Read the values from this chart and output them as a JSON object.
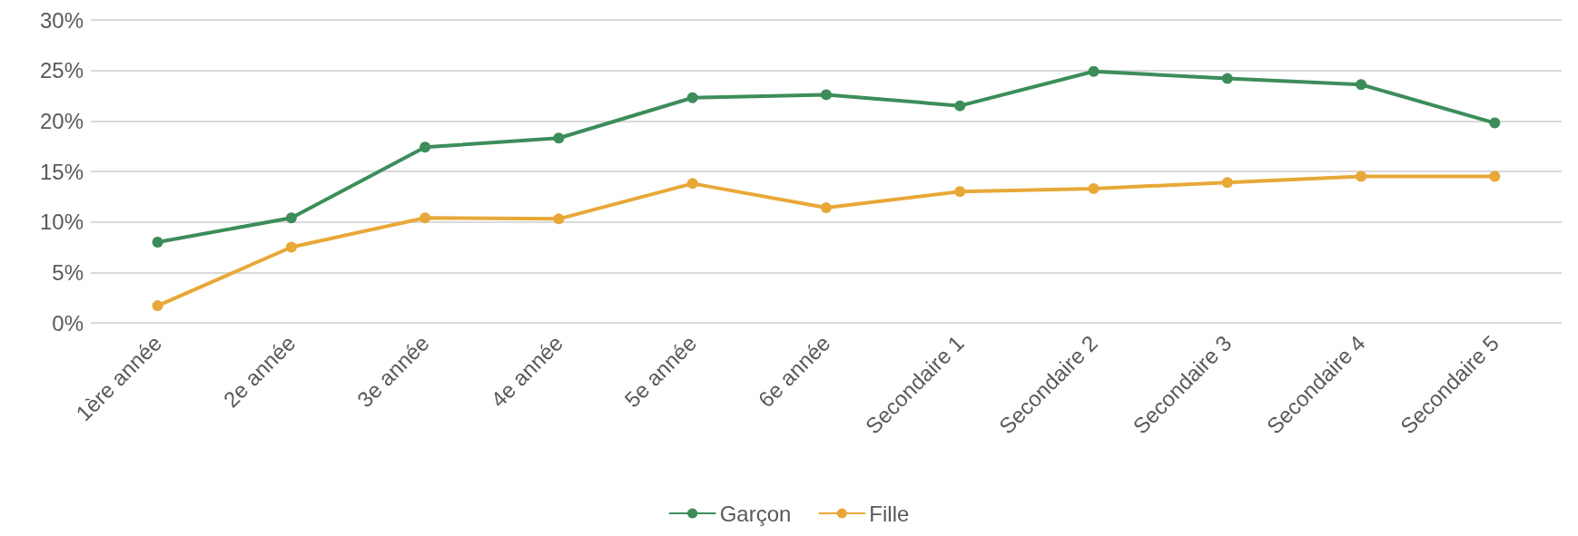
{
  "chart_data": {
    "type": "line",
    "categories": [
      "1ère année",
      "2e année",
      "3e année",
      "4e année",
      "5e année",
      "6e année",
      "Secondaire 1",
      "Secondaire 2",
      "Secondaire 3",
      "Secondaire 4",
      "Secondaire 5"
    ],
    "series": [
      {
        "name": "Garçon",
        "color": "#3c8d5a",
        "values": [
          8.0,
          10.4,
          17.4,
          18.3,
          22.3,
          22.6,
          21.5,
          24.9,
          24.2,
          23.6,
          19.8
        ]
      },
      {
        "name": "Fille",
        "color": "#e8a838",
        "values": [
          1.7,
          7.5,
          10.4,
          10.3,
          13.8,
          11.4,
          13.0,
          13.3,
          13.9,
          14.5,
          14.5
        ]
      }
    ],
    "ylim": [
      0,
      30
    ],
    "yticks": [
      {
        "value": 0,
        "label": "0%"
      },
      {
        "value": 5,
        "label": "5%"
      },
      {
        "value": 10,
        "label": "10%"
      },
      {
        "value": 15,
        "label": "15%"
      },
      {
        "value": 20,
        "label": "20%"
      },
      {
        "value": 25,
        "label": "25%"
      },
      {
        "value": 30,
        "label": "30%"
      }
    ],
    "grid": "y",
    "legend": "bottom",
    "marker": "circle",
    "line_style": "solid"
  }
}
